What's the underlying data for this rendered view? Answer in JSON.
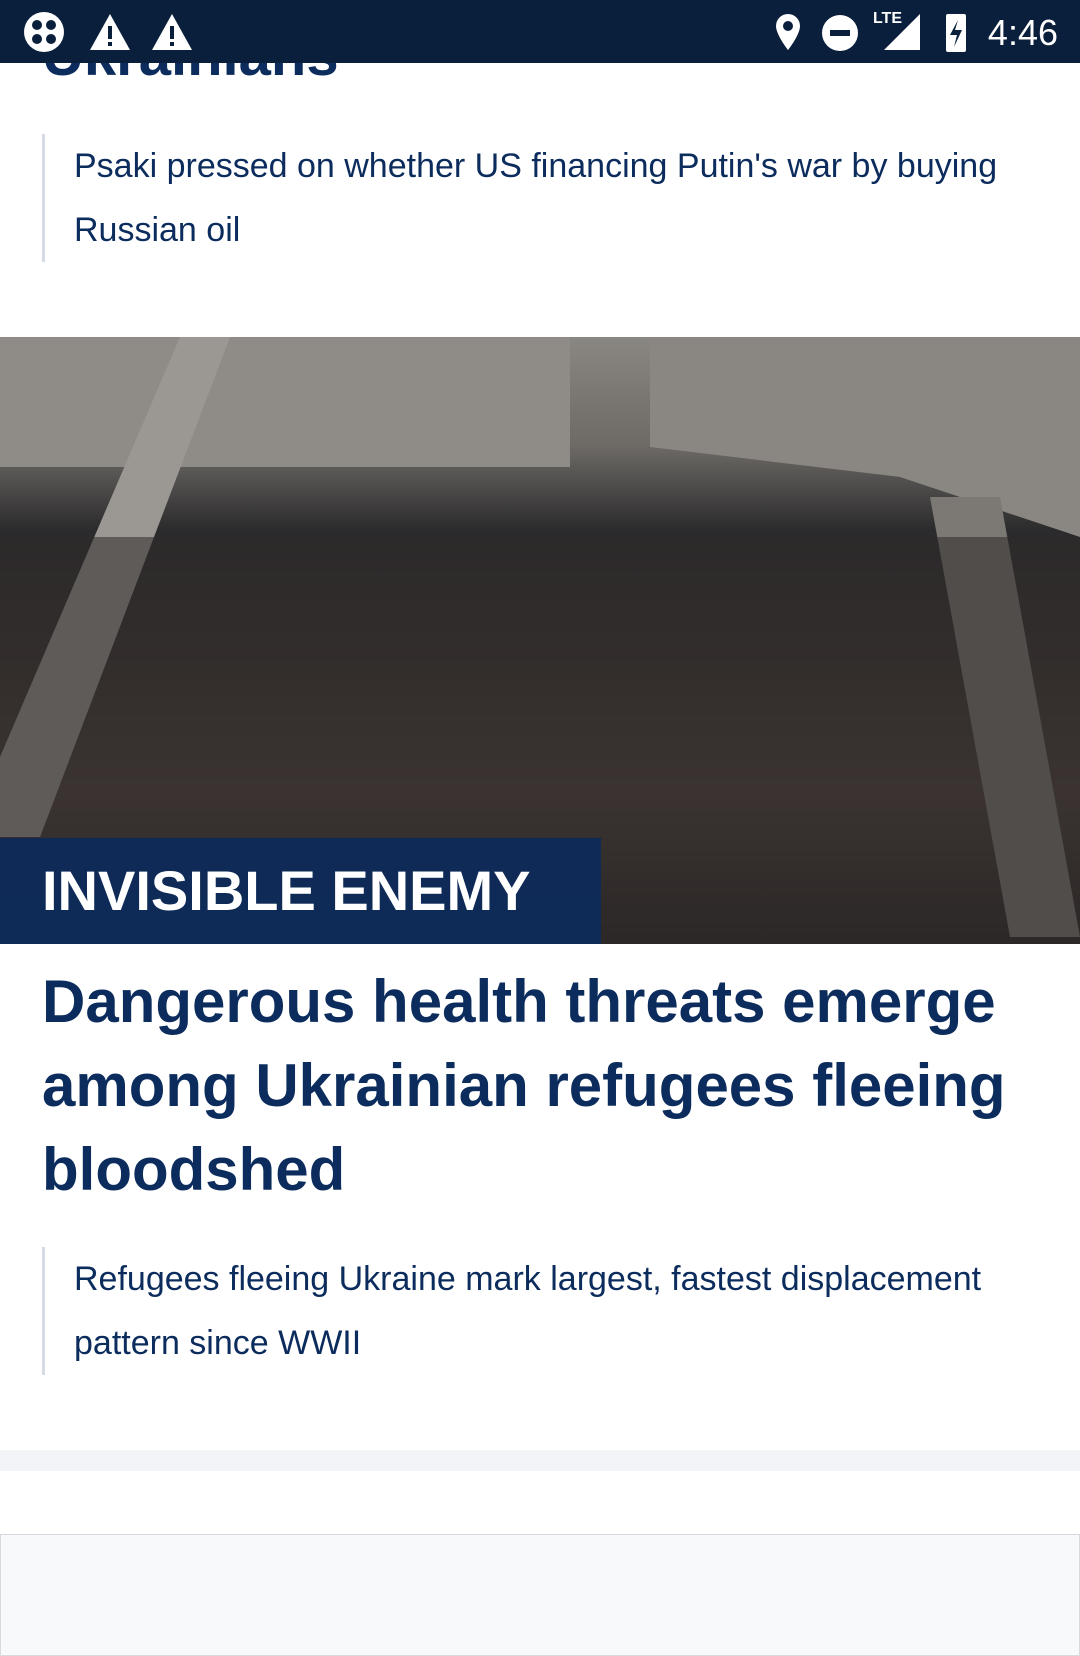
{
  "status_bar": {
    "network": "LTE",
    "time": "4:46"
  },
  "previous_article": {
    "title": "Ukrainians",
    "related": "Psaki pressed on whether US financing Putin's war by buying Russian oil"
  },
  "article": {
    "label": "INVISIBLE ENEMY",
    "title": "Dangerous health threats emerge among Ukrainian refugees fleeing bloodshed",
    "related": "Refugees fleeing Ukraine mark largest, fastest displacement pattern since WWII"
  }
}
